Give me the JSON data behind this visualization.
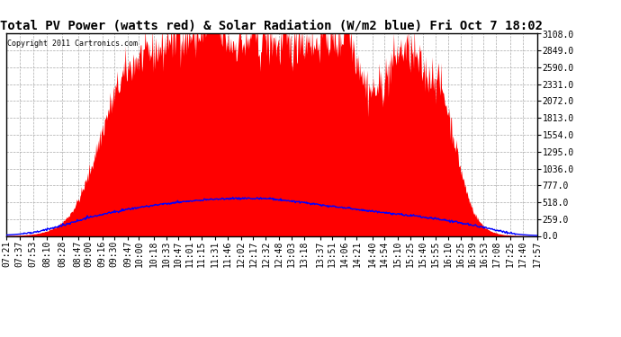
{
  "title": "Total PV Power (watts red) & Solar Radiation (W/m2 blue) Fri Oct 7 18:02",
  "copyright": "Copyright 2011 Cartronics.com",
  "y_max": 3108.0,
  "y_min": 0.0,
  "y_ticks": [
    0.0,
    259.0,
    518.0,
    777.0,
    1036.0,
    1295.0,
    1554.0,
    1813.0,
    2072.0,
    2331.0,
    2590.0,
    2849.0,
    3108.0
  ],
  "x_labels": [
    "07:21",
    "07:37",
    "07:53",
    "08:10",
    "08:28",
    "08:47",
    "09:00",
    "09:16",
    "09:30",
    "09:47",
    "10:00",
    "10:18",
    "10:33",
    "10:47",
    "11:01",
    "11:15",
    "11:31",
    "11:46",
    "12:02",
    "12:17",
    "12:32",
    "12:48",
    "13:03",
    "13:18",
    "13:37",
    "13:51",
    "14:06",
    "14:21",
    "14:40",
    "14:54",
    "15:10",
    "15:25",
    "15:40",
    "15:55",
    "16:10",
    "16:25",
    "16:39",
    "16:53",
    "17:08",
    "17:25",
    "17:40",
    "17:57"
  ],
  "pv_color": "#ff0000",
  "solar_color": "#0000ff",
  "bg_color": "#ffffff",
  "grid_color": "#aaaaaa",
  "title_fontsize": 10,
  "tick_fontsize": 7
}
